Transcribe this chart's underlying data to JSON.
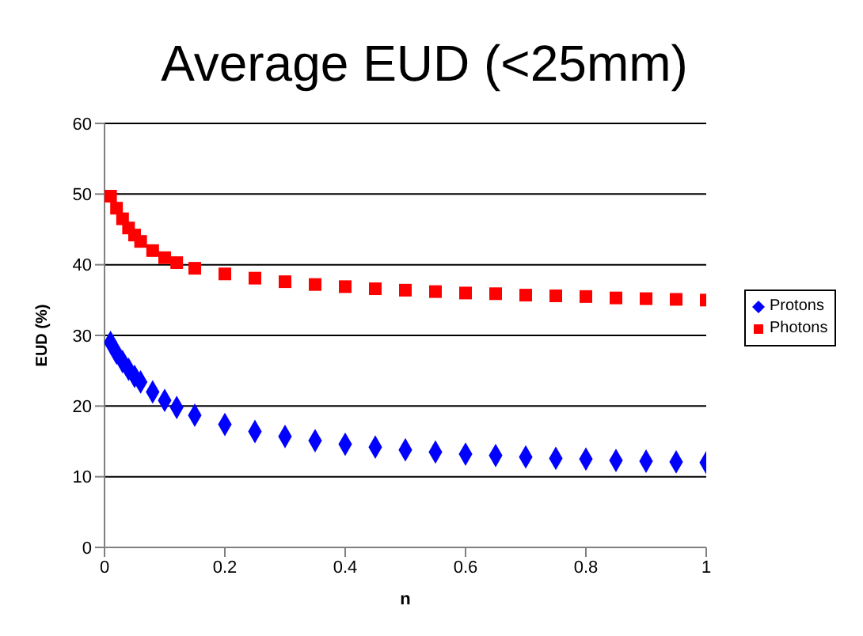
{
  "chart_data": {
    "type": "scatter",
    "title": "Average EUD (<25mm)",
    "xlabel": "n",
    "ylabel": "EUD (%)",
    "xlim": [
      0,
      1
    ],
    "xticks": [
      0,
      0.2,
      0.4,
      0.6,
      0.8,
      1
    ],
    "ylim": [
      0,
      60
    ],
    "yticks": [
      0,
      10,
      20,
      30,
      40,
      50,
      60
    ],
    "grid": "y",
    "legend": "right",
    "series": [
      {
        "name": "Protons",
        "color": "#0000ff",
        "marker": "diamond",
        "x": [
          0.01,
          0.02,
          0.03,
          0.04,
          0.05,
          0.06,
          0.08,
          0.1,
          0.12,
          0.15,
          0.2,
          0.25,
          0.3,
          0.35,
          0.4,
          0.45,
          0.5,
          0.55,
          0.6,
          0.65,
          0.7,
          0.75,
          0.8,
          0.85,
          0.9,
          0.95,
          1
        ],
        "values": [
          29,
          27.5,
          26.3,
          25.2,
          24.2,
          23.4,
          22,
          20.8,
          19.8,
          18.7,
          17.4,
          16.4,
          15.7,
          15.1,
          14.6,
          14.2,
          13.8,
          13.5,
          13.2,
          13,
          12.8,
          12.6,
          12.5,
          12.3,
          12.2,
          12.1,
          12
        ]
      },
      {
        "name": "Photons",
        "color": "#ff0000",
        "marker": "square",
        "x": [
          0.01,
          0.02,
          0.03,
          0.04,
          0.05,
          0.06,
          0.08,
          0.1,
          0.12,
          0.15,
          0.2,
          0.25,
          0.3,
          0.35,
          0.4,
          0.45,
          0.5,
          0.55,
          0.6,
          0.65,
          0.7,
          0.75,
          0.8,
          0.85,
          0.9,
          0.95,
          1
        ],
        "values": [
          49.7,
          48,
          46.5,
          45.2,
          44.2,
          43.3,
          42,
          41,
          40.3,
          39.5,
          38.7,
          38.1,
          37.6,
          37.2,
          36.9,
          36.6,
          36.4,
          36.2,
          36,
          35.9,
          35.7,
          35.6,
          35.5,
          35.3,
          35.2,
          35.1,
          35
        ]
      }
    ]
  }
}
